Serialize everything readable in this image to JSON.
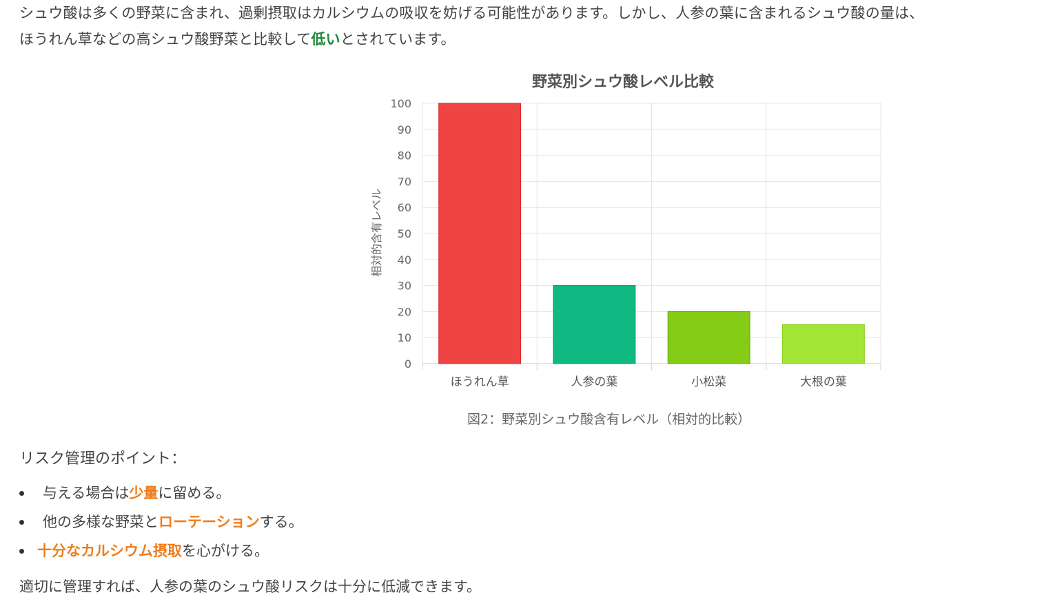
{
  "intro": {
    "line1": "シュウ酸は多くの野菜に含まれ、過剰摂取はカルシウムの吸収を妨げる可能性があります。しかし、人参の葉に含まれるシュウ酸の量は、",
    "line2_before": "ほうれん草などの高シュウ酸野菜と比較して",
    "line2_highlight": "低い",
    "line2_after": "とされています。"
  },
  "chart_data": {
    "type": "bar",
    "title": "野菜別シュウ酸レベル比較",
    "ylabel": "相対的含有レベル",
    "xlabel": "",
    "categories": [
      "ほうれん草",
      "人参の葉",
      "小松菜",
      "大根の葉"
    ],
    "values": [
      100,
      30,
      20,
      15
    ],
    "ylim": [
      0,
      100
    ],
    "yticks": [
      0,
      10,
      20,
      30,
      40,
      50,
      60,
      70,
      80,
      90,
      100
    ],
    "colors": [
      "#ef4444",
      "#10b981",
      "#84cc16",
      "#a3e635"
    ],
    "border_colors": [
      "#dc2626",
      "#059669",
      "#65a30d",
      "#84cc16"
    ],
    "grid": true,
    "legend": "none"
  },
  "caption": "図2：野菜別シュウ酸含有レベル（相対的比較）",
  "risk": {
    "heading": "リスク管理のポイント：",
    "items": [
      {
        "before": "与える場合は",
        "highlight": "少量",
        "after": "に留める。"
      },
      {
        "before": "他の多様な野菜と",
        "highlight": "ローテーション",
        "after": "する。"
      },
      {
        "before": "",
        "highlight": "十分なカルシウム摂取",
        "after": "を心がける。"
      }
    ]
  },
  "conclusion": "適切に管理すれば、人参の葉のシュウ酸リスクは十分に低減できます。"
}
